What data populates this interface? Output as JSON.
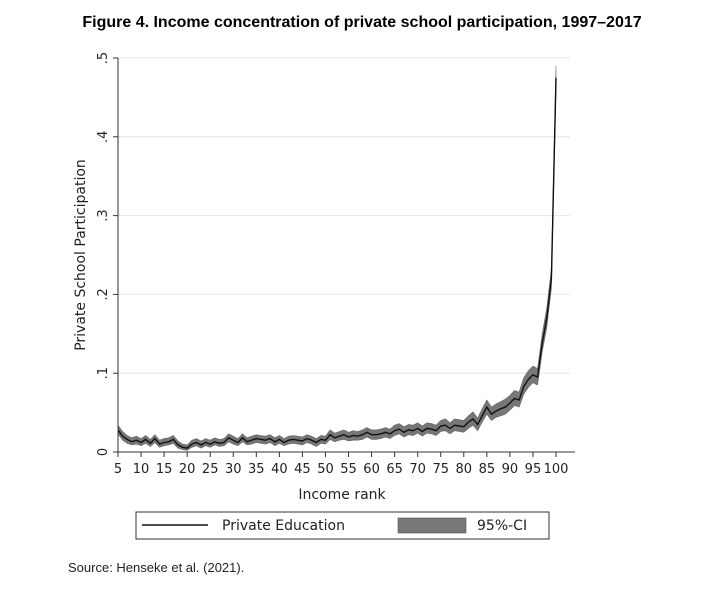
{
  "figure": {
    "title": "Figure 4. Income concentration of private school participation, 1997–2017",
    "source": "Source: Henseke et al. (2021)."
  },
  "chart_data": {
    "type": "line",
    "title": "",
    "xlabel": "Income rank",
    "ylabel": "Private School Participation",
    "xlim": [
      5,
      100
    ],
    "ylim": [
      0,
      0.5
    ],
    "x_ticks": [
      5,
      10,
      15,
      20,
      25,
      30,
      35,
      40,
      45,
      50,
      55,
      60,
      65,
      70,
      75,
      80,
      85,
      90,
      95,
      100
    ],
    "y_ticks": [
      0,
      0.1,
      0.2,
      0.3,
      0.4,
      0.5
    ],
    "y_tick_labels": [
      "0",
      ".1",
      ".2",
      ".3",
      ".4",
      ".5"
    ],
    "grid": true,
    "legend_position": "bottom",
    "colors": {
      "line": "#111111",
      "ci": "#777777",
      "grid": "#e6e6e6"
    },
    "series": [
      {
        "name": "Private Education",
        "x": [
          5,
          6,
          7,
          8,
          9,
          10,
          11,
          12,
          13,
          14,
          15,
          16,
          17,
          18,
          19,
          20,
          21,
          22,
          23,
          24,
          25,
          26,
          27,
          28,
          29,
          30,
          31,
          32,
          33,
          34,
          35,
          36,
          37,
          38,
          39,
          40,
          41,
          42,
          43,
          44,
          45,
          46,
          47,
          48,
          49,
          50,
          51,
          52,
          53,
          54,
          55,
          56,
          57,
          58,
          59,
          60,
          61,
          62,
          63,
          64,
          65,
          66,
          67,
          68,
          69,
          70,
          71,
          72,
          73,
          74,
          75,
          76,
          77,
          78,
          79,
          80,
          81,
          82,
          83,
          84,
          85,
          86,
          87,
          88,
          89,
          90,
          91,
          92,
          93,
          94,
          95,
          96,
          97,
          98,
          99,
          100
        ],
        "values": [
          0.028,
          0.02,
          0.016,
          0.013,
          0.015,
          0.012,
          0.016,
          0.011,
          0.017,
          0.01,
          0.012,
          0.013,
          0.016,
          0.009,
          0.006,
          0.005,
          0.01,
          0.012,
          0.009,
          0.012,
          0.01,
          0.013,
          0.011,
          0.012,
          0.018,
          0.015,
          0.012,
          0.018,
          0.013,
          0.015,
          0.017,
          0.016,
          0.015,
          0.017,
          0.013,
          0.016,
          0.012,
          0.015,
          0.016,
          0.015,
          0.014,
          0.017,
          0.015,
          0.012,
          0.016,
          0.015,
          0.022,
          0.018,
          0.02,
          0.022,
          0.019,
          0.021,
          0.02,
          0.022,
          0.025,
          0.022,
          0.022,
          0.023,
          0.025,
          0.023,
          0.027,
          0.029,
          0.025,
          0.028,
          0.027,
          0.03,
          0.026,
          0.03,
          0.029,
          0.027,
          0.033,
          0.034,
          0.03,
          0.034,
          0.033,
          0.032,
          0.038,
          0.042,
          0.035,
          0.046,
          0.057,
          0.048,
          0.052,
          0.055,
          0.057,
          0.062,
          0.068,
          0.066,
          0.083,
          0.092,
          0.098,
          0.095,
          0.138,
          0.17,
          0.22,
          0.475
        ]
      },
      {
        "name": "95%-CI",
        "x": [
          5,
          6,
          7,
          8,
          9,
          10,
          11,
          12,
          13,
          14,
          15,
          16,
          17,
          18,
          19,
          20,
          21,
          22,
          23,
          24,
          25,
          26,
          27,
          28,
          29,
          30,
          31,
          32,
          33,
          34,
          35,
          36,
          37,
          38,
          39,
          40,
          41,
          42,
          43,
          44,
          45,
          46,
          47,
          48,
          49,
          50,
          51,
          52,
          53,
          54,
          55,
          56,
          57,
          58,
          59,
          60,
          61,
          62,
          63,
          64,
          65,
          66,
          67,
          68,
          69,
          70,
          71,
          72,
          73,
          74,
          75,
          76,
          77,
          78,
          79,
          80,
          81,
          82,
          83,
          84,
          85,
          86,
          87,
          88,
          89,
          90,
          91,
          92,
          93,
          94,
          95,
          96,
          97,
          98,
          99,
          100
        ],
        "lower": [
          0.023,
          0.015,
          0.011,
          0.009,
          0.01,
          0.008,
          0.011,
          0.007,
          0.012,
          0.006,
          0.008,
          0.009,
          0.011,
          0.005,
          0.003,
          0.002,
          0.006,
          0.008,
          0.005,
          0.008,
          0.006,
          0.009,
          0.007,
          0.008,
          0.013,
          0.01,
          0.008,
          0.013,
          0.009,
          0.01,
          0.012,
          0.011,
          0.01,
          0.012,
          0.008,
          0.011,
          0.008,
          0.01,
          0.011,
          0.01,
          0.009,
          0.012,
          0.01,
          0.007,
          0.011,
          0.01,
          0.016,
          0.013,
          0.015,
          0.016,
          0.014,
          0.015,
          0.015,
          0.016,
          0.019,
          0.016,
          0.016,
          0.017,
          0.019,
          0.017,
          0.021,
          0.023,
          0.019,
          0.022,
          0.021,
          0.024,
          0.02,
          0.024,
          0.023,
          0.021,
          0.026,
          0.027,
          0.023,
          0.027,
          0.026,
          0.025,
          0.03,
          0.034,
          0.027,
          0.038,
          0.048,
          0.04,
          0.044,
          0.046,
          0.048,
          0.053,
          0.059,
          0.057,
          0.073,
          0.082,
          0.088,
          0.085,
          0.127,
          0.158,
          0.208,
          0.46
        ],
        "upper": [
          0.034,
          0.026,
          0.021,
          0.018,
          0.02,
          0.017,
          0.021,
          0.016,
          0.022,
          0.015,
          0.017,
          0.018,
          0.021,
          0.014,
          0.01,
          0.009,
          0.015,
          0.017,
          0.014,
          0.017,
          0.015,
          0.018,
          0.016,
          0.017,
          0.023,
          0.02,
          0.017,
          0.023,
          0.018,
          0.02,
          0.022,
          0.021,
          0.02,
          0.022,
          0.018,
          0.021,
          0.017,
          0.02,
          0.021,
          0.02,
          0.019,
          0.022,
          0.02,
          0.017,
          0.021,
          0.02,
          0.028,
          0.024,
          0.026,
          0.028,
          0.025,
          0.027,
          0.026,
          0.028,
          0.031,
          0.028,
          0.028,
          0.029,
          0.031,
          0.029,
          0.034,
          0.036,
          0.032,
          0.035,
          0.034,
          0.037,
          0.033,
          0.037,
          0.036,
          0.034,
          0.04,
          0.042,
          0.037,
          0.042,
          0.041,
          0.04,
          0.046,
          0.051,
          0.043,
          0.055,
          0.066,
          0.057,
          0.061,
          0.064,
          0.067,
          0.072,
          0.078,
          0.076,
          0.094,
          0.103,
          0.109,
          0.106,
          0.15,
          0.183,
          0.233,
          0.49
        ]
      }
    ],
    "legend": [
      {
        "label": "Private Education",
        "swatch": "line"
      },
      {
        "label": "95%-CI",
        "swatch": "fill"
      }
    ]
  }
}
